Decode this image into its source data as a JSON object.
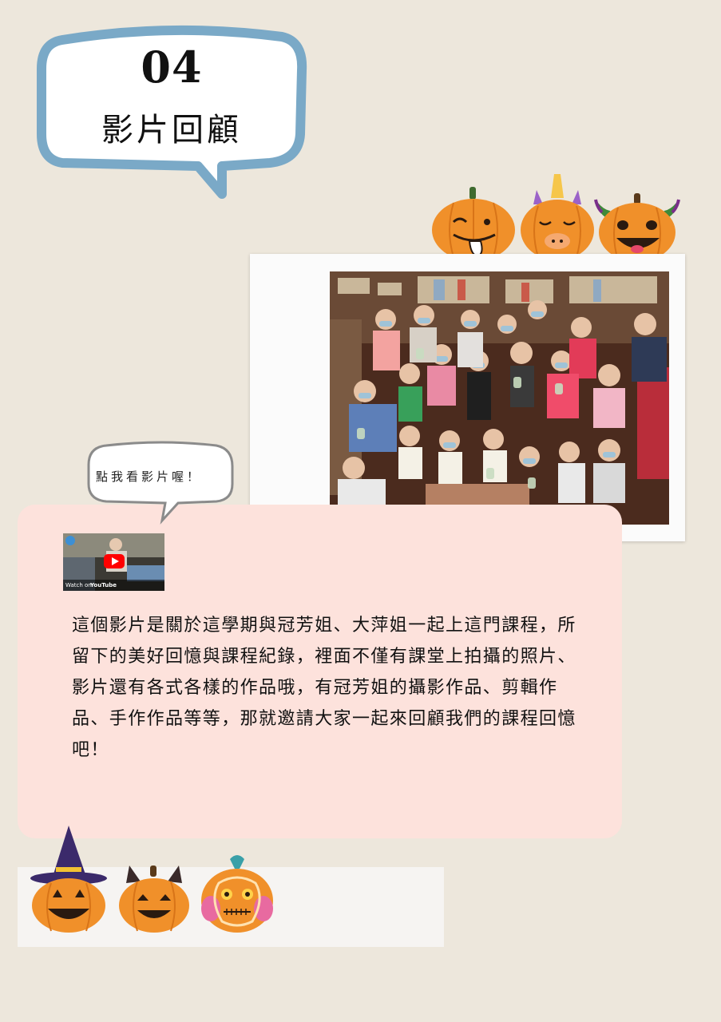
{
  "header": {
    "section_number": "04",
    "section_title": "影片回顧"
  },
  "callout": {
    "text": "點我看影片喔！"
  },
  "video": {
    "source_label": "Watch on",
    "platform_label": "YouTube",
    "play_icon": "play-icon"
  },
  "description": "這個影片是關於這學期與冠芳姐、大萍姐一起上這門課程，所留下的美好回憶與課程紀錄，裡面不僅有課堂上拍攝的照片、影片還有各式各樣的作品哦，有冠芳姐的攝影作品、剪輯作品、手作作品等等，那就邀請大家一起來回顧我們的課程回憶吧！",
  "colors": {
    "background": "#ede7dc",
    "bubble_border": "#7aa9c7",
    "card": "#fde2dc",
    "pumpkin": "#f0902a"
  },
  "decorations": {
    "top_pumpkins": [
      "pumpkin-tongue-icon",
      "pumpkin-unicorn-icon",
      "pumpkin-devil-icon"
    ],
    "bottom_pumpkins": [
      "pumpkin-witch-icon",
      "pumpkin-cat-icon",
      "pumpkin-sugar-skull-icon"
    ]
  }
}
